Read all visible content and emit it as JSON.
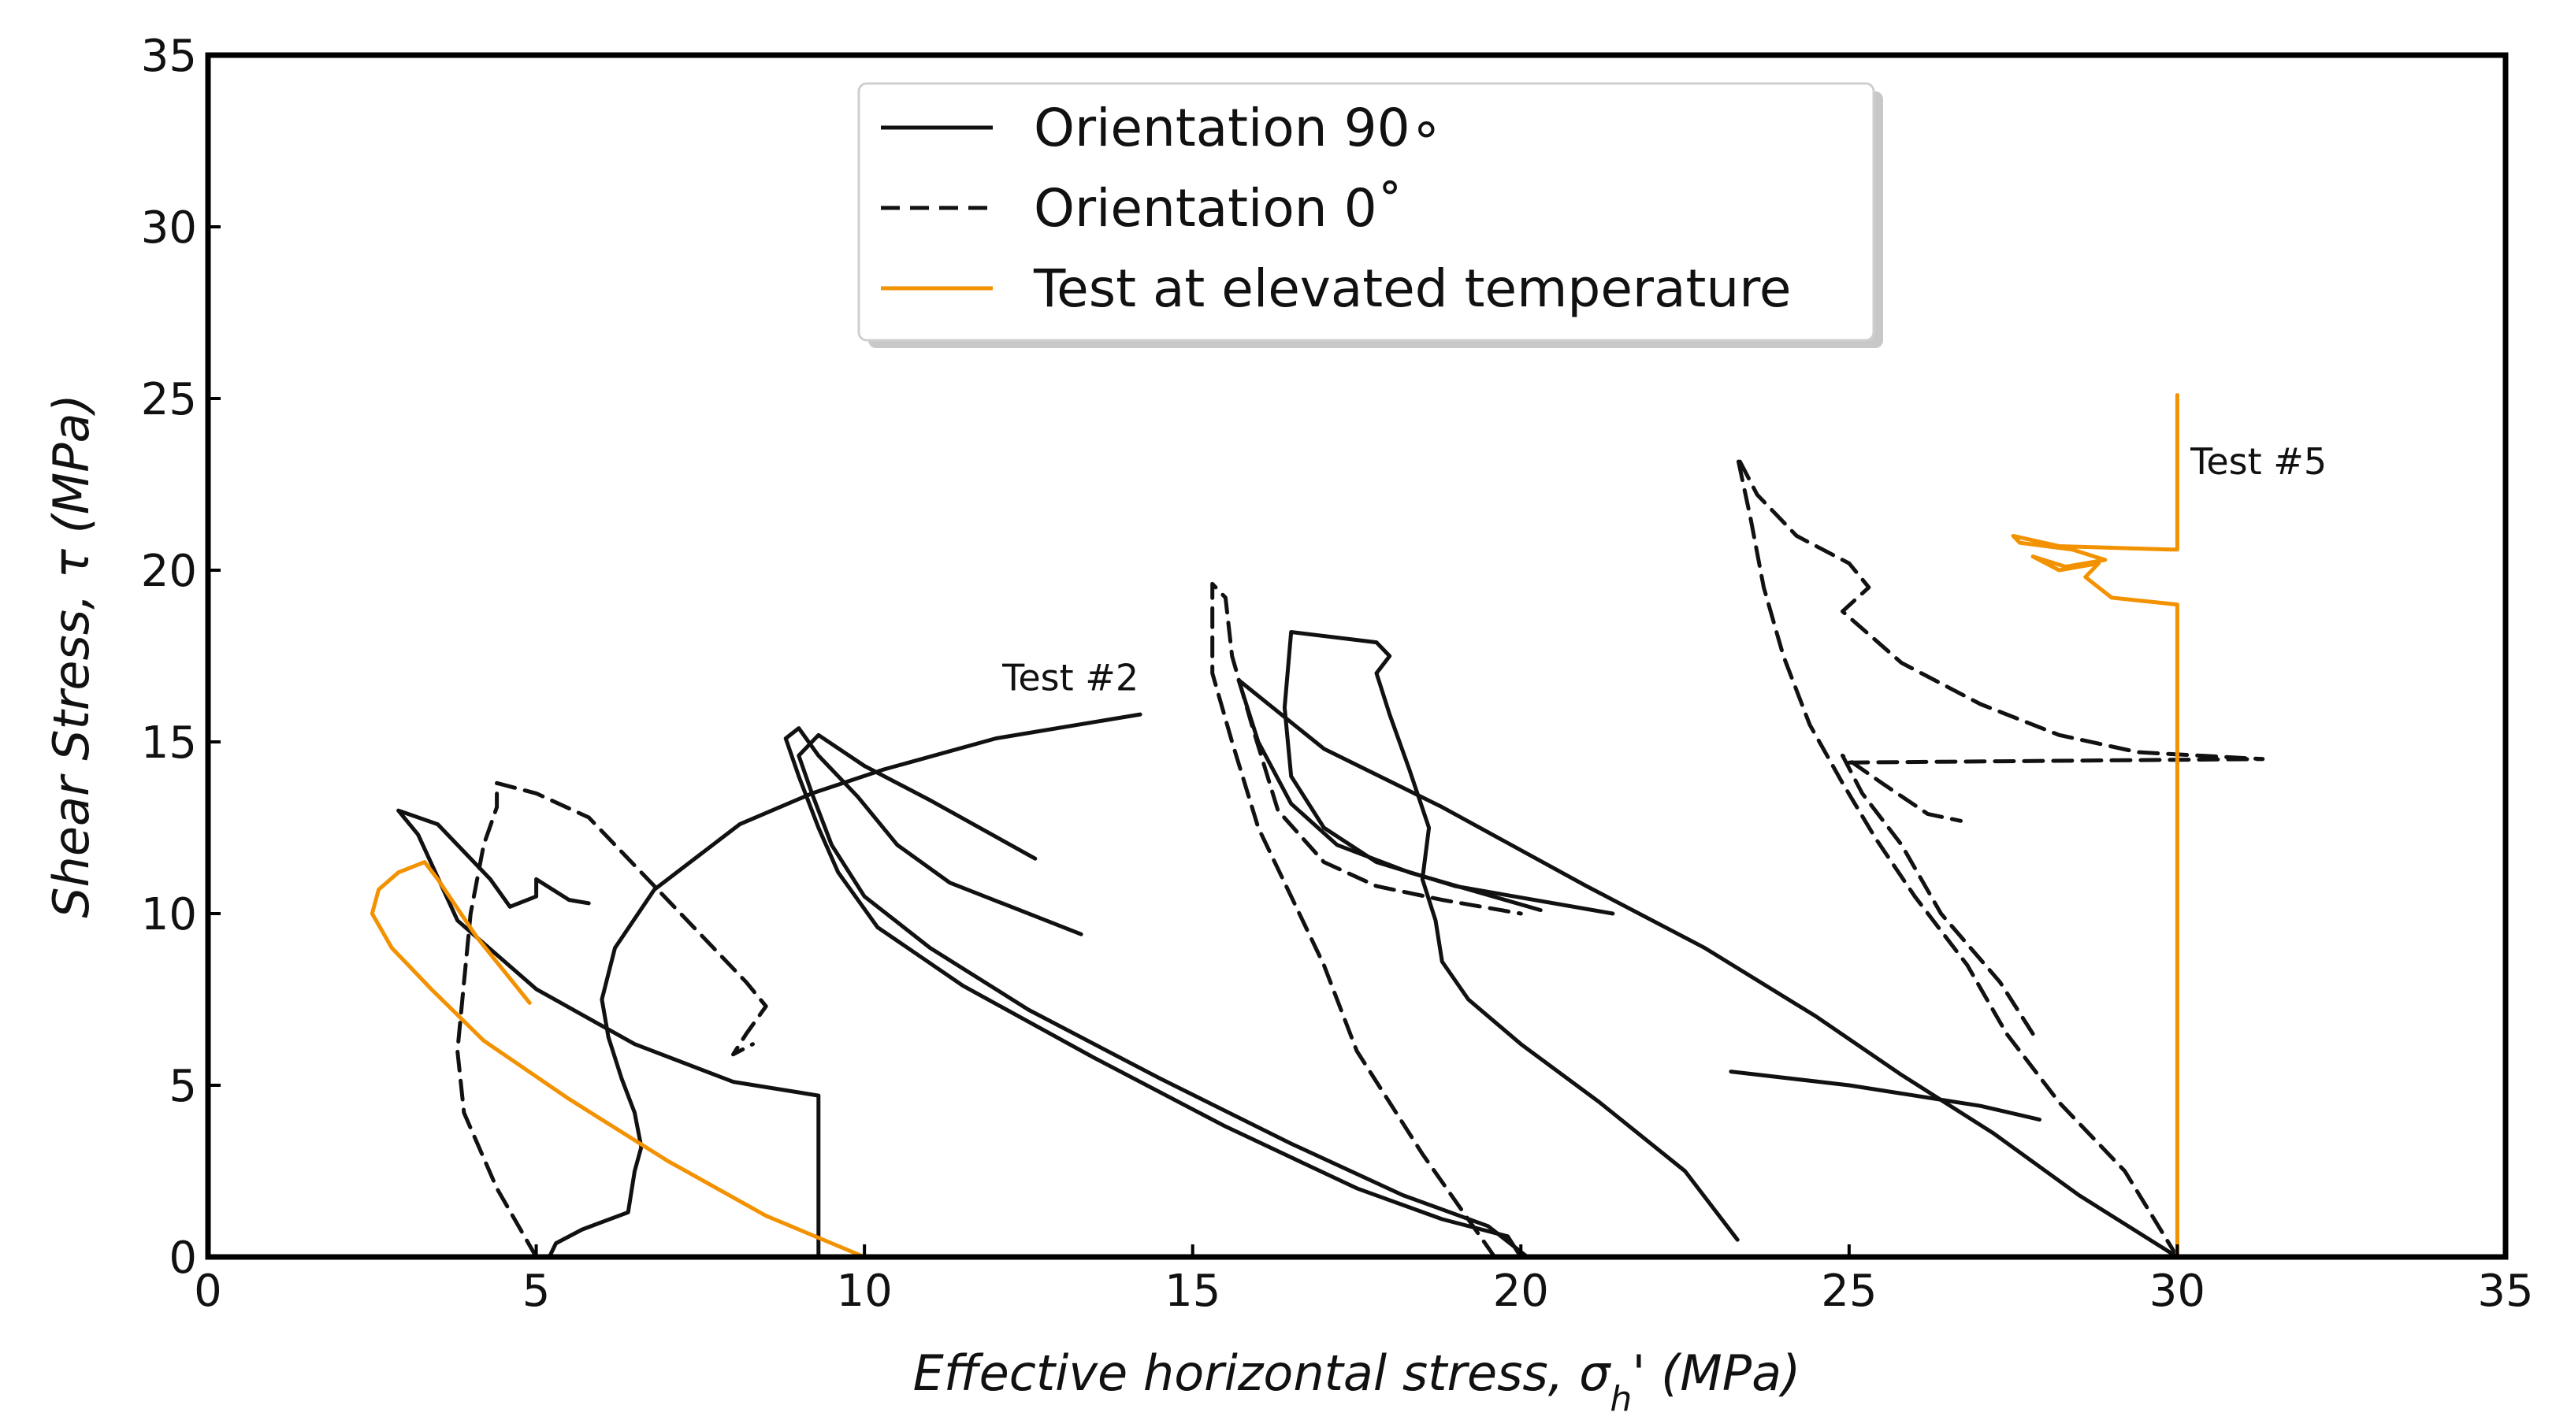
{
  "chart_data": {
    "type": "line",
    "title": "",
    "xlabel": "Effective horizontal stress, σ",
    "xlabel_sub": "h",
    "xlabel_tail": "'  (MPa)",
    "ylabel": "Shear Stress, τ (MPa)",
    "xlim": [
      0,
      35
    ],
    "ylim": [
      0,
      35
    ],
    "x_ticks": [
      0,
      5,
      10,
      15,
      20,
      25,
      30,
      35
    ],
    "y_ticks": [
      0,
      5,
      10,
      15,
      20,
      25,
      30,
      35
    ],
    "legend": [
      {
        "label": "Orientation 90∘",
        "style": "solid",
        "color": "#111111"
      },
      {
        "label": "Orientation 0˚",
        "style": "dashed",
        "color": "#111111"
      },
      {
        "label": "Test at elevated temperature",
        "style": "solid",
        "color": "#f39200"
      }
    ],
    "annotations": [
      {
        "text": "Test #2",
        "x": 12.1,
        "y": 16.5
      },
      {
        "text": "Test #5",
        "x": 30.2,
        "y": 22.8
      }
    ],
    "series": [
      {
        "name": "90-a",
        "style": "solid",
        "color": "#111111",
        "points": [
          [
            9.3,
            0
          ],
          [
            9.3,
            4.7
          ],
          [
            8.0,
            5.1
          ],
          [
            6.5,
            6.2
          ],
          [
            5.0,
            7.8
          ],
          [
            3.8,
            9.8
          ],
          [
            3.2,
            12.3
          ],
          [
            2.9,
            13.0
          ],
          [
            3.5,
            12.6
          ],
          [
            4.3,
            11.0
          ],
          [
            4.6,
            10.2
          ],
          [
            5.0,
            10.5
          ],
          [
            5.0,
            11.0
          ],
          [
            5.5,
            10.4
          ],
          [
            5.8,
            10.3
          ]
        ]
      },
      {
        "name": "90-b",
        "style": "solid",
        "color": "#111111",
        "points": [
          [
            5.2,
            0
          ],
          [
            5.3,
            0.4
          ],
          [
            5.7,
            0.8
          ],
          [
            6.4,
            1.3
          ],
          [
            6.5,
            2.5
          ],
          [
            6.6,
            3.2
          ],
          [
            6.5,
            4.2
          ],
          [
            6.3,
            5.2
          ],
          [
            6.1,
            6.4
          ],
          [
            6.0,
            7.5
          ],
          [
            6.2,
            9.0
          ],
          [
            6.8,
            10.7
          ],
          [
            8.1,
            12.6
          ],
          [
            9.2,
            13.5
          ],
          [
            10.3,
            14.2
          ],
          [
            12.0,
            15.1
          ],
          [
            14.2,
            15.8
          ]
        ]
      },
      {
        "name": "90-c",
        "style": "solid",
        "color": "#111111",
        "points": [
          [
            20.0,
            0
          ],
          [
            19.8,
            0.6
          ],
          [
            18.8,
            1.1
          ],
          [
            17.5,
            2.0
          ],
          [
            15.5,
            3.8
          ],
          [
            13.5,
            5.8
          ],
          [
            11.5,
            7.9
          ],
          [
            10.2,
            9.6
          ],
          [
            9.6,
            11.2
          ],
          [
            9.3,
            12.5
          ],
          [
            9.0,
            14.0
          ],
          [
            8.8,
            15.1
          ],
          [
            9.0,
            15.4
          ],
          [
            9.3,
            14.6
          ],
          [
            9.9,
            13.4
          ],
          [
            10.5,
            12.0
          ],
          [
            11.3,
            10.9
          ],
          [
            13.3,
            9.4
          ]
        ]
      },
      {
        "name": "90-d",
        "style": "solid",
        "color": "#111111",
        "points": [
          [
            20.1,
            0
          ],
          [
            19.5,
            0.9
          ],
          [
            18.2,
            1.8
          ],
          [
            16.5,
            3.3
          ],
          [
            14.5,
            5.2
          ],
          [
            12.5,
            7.2
          ],
          [
            11.0,
            9.0
          ],
          [
            10.0,
            10.5
          ],
          [
            9.5,
            12.0
          ],
          [
            9.2,
            13.5
          ],
          [
            9.0,
            14.6
          ],
          [
            9.3,
            15.2
          ],
          [
            10.0,
            14.3
          ],
          [
            11.0,
            13.3
          ],
          [
            12.6,
            11.6
          ]
        ]
      },
      {
        "name": "90-e",
        "style": "solid",
        "color": "#111111",
        "points": [
          [
            23.3,
            0.5
          ],
          [
            22.5,
            2.5
          ],
          [
            21.2,
            4.5
          ],
          [
            20.0,
            6.2
          ],
          [
            19.2,
            7.5
          ],
          [
            18.8,
            8.6
          ],
          [
            18.7,
            9.8
          ],
          [
            18.5,
            11.0
          ],
          [
            18.6,
            12.5
          ],
          [
            18.3,
            14.2
          ],
          [
            18.0,
            15.8
          ],
          [
            17.8,
            17.0
          ],
          [
            18.0,
            17.5
          ],
          [
            17.8,
            17.9
          ],
          [
            16.5,
            18.2
          ],
          [
            16.4,
            16.0
          ],
          [
            16.5,
            14.0
          ],
          [
            17.0,
            12.5
          ],
          [
            17.8,
            11.5
          ],
          [
            19.0,
            10.8
          ],
          [
            21.4,
            10.0
          ]
        ]
      },
      {
        "name": "90-f",
        "style": "solid",
        "color": "#111111",
        "points": [
          [
            30.0,
            0
          ],
          [
            28.5,
            1.8
          ],
          [
            27.2,
            3.6
          ],
          [
            25.8,
            5.3
          ],
          [
            24.5,
            7.0
          ],
          [
            22.8,
            9.0
          ],
          [
            21.0,
            10.8
          ],
          [
            18.8,
            13.1
          ],
          [
            17.0,
            14.8
          ],
          [
            15.7,
            16.8
          ],
          [
            16.0,
            15.0
          ],
          [
            16.5,
            13.2
          ],
          [
            17.2,
            12.0
          ],
          [
            18.3,
            11.2
          ],
          [
            20.3,
            10.1
          ]
        ]
      },
      {
        "name": "90-g",
        "style": "solid",
        "color": "#111111",
        "points": [
          [
            23.2,
            5.4
          ],
          [
            25.0,
            5.0
          ],
          [
            27.0,
            4.4
          ],
          [
            27.9,
            4.0
          ]
        ]
      },
      {
        "name": "0-a",
        "style": "dashed",
        "color": "#111111",
        "points": [
          [
            5.0,
            0
          ],
          [
            4.4,
            2.0
          ],
          [
            3.9,
            4.2
          ],
          [
            3.8,
            6.0
          ],
          [
            3.9,
            8.0
          ],
          [
            4.0,
            10.0
          ],
          [
            4.2,
            12.0
          ],
          [
            4.4,
            13.1
          ],
          [
            4.4,
            13.8
          ],
          [
            5.0,
            13.5
          ],
          [
            5.8,
            12.8
          ],
          [
            6.6,
            11.2
          ],
          [
            7.5,
            9.4
          ],
          [
            8.2,
            8.0
          ],
          [
            8.5,
            7.3
          ],
          [
            8.2,
            6.5
          ],
          [
            8.0,
            5.9
          ],
          [
            8.3,
            6.2
          ]
        ]
      },
      {
        "name": "0-b",
        "style": "dashed",
        "color": "#111111",
        "points": [
          [
            19.6,
            0
          ],
          [
            18.5,
            3.0
          ],
          [
            17.5,
            6.0
          ],
          [
            17.0,
            8.5
          ],
          [
            16.5,
            10.5
          ],
          [
            16.0,
            12.5
          ],
          [
            15.6,
            15.0
          ],
          [
            15.3,
            17.0
          ],
          [
            15.3,
            19.6
          ],
          [
            15.5,
            19.2
          ],
          [
            15.6,
            17.5
          ],
          [
            15.9,
            15.5
          ],
          [
            16.3,
            13.0
          ],
          [
            17.0,
            11.5
          ],
          [
            17.8,
            10.8
          ],
          [
            18.8,
            10.4
          ],
          [
            20.0,
            10.0
          ]
        ]
      },
      {
        "name": "0-c",
        "style": "dashed",
        "color": "#111111",
        "points": [
          [
            30.0,
            0
          ],
          [
            29.2,
            2.5
          ],
          [
            28.2,
            4.5
          ],
          [
            27.4,
            6.5
          ],
          [
            26.8,
            8.5
          ],
          [
            26.0,
            10.5
          ],
          [
            25.4,
            12.2
          ],
          [
            24.9,
            13.8
          ],
          [
            24.4,
            15.5
          ],
          [
            24.0,
            17.5
          ],
          [
            23.7,
            19.5
          ],
          [
            23.5,
            21.5
          ],
          [
            23.3,
            23.3
          ],
          [
            23.6,
            22.2
          ],
          [
            24.2,
            21.0
          ],
          [
            25.0,
            20.2
          ],
          [
            25.3,
            19.5
          ],
          [
            24.9,
            18.8
          ],
          [
            25.8,
            17.3
          ],
          [
            27.0,
            16.1
          ],
          [
            28.2,
            15.2
          ],
          [
            29.4,
            14.7
          ],
          [
            31.3,
            14.5
          ]
        ]
      },
      {
        "name": "0-d",
        "style": "dashed",
        "color": "#111111",
        "points": [
          [
            27.8,
            6.5
          ],
          [
            27.3,
            8.0
          ],
          [
            26.4,
            10.0
          ],
          [
            25.8,
            12.0
          ],
          [
            25.2,
            13.5
          ],
          [
            24.9,
            14.6
          ],
          [
            25.5,
            13.8
          ],
          [
            26.2,
            12.9
          ],
          [
            26.7,
            12.7
          ]
        ]
      },
      {
        "name": "0-e",
        "style": "dashed",
        "color": "#111111",
        "points": [
          [
            25.0,
            14.4
          ],
          [
            31.3,
            14.5
          ]
        ]
      },
      {
        "name": "temp-a",
        "style": "solid",
        "color": "#f39200",
        "points": [
          [
            10.0,
            0
          ],
          [
            8.5,
            1.2
          ],
          [
            7.0,
            2.8
          ],
          [
            5.5,
            4.6
          ],
          [
            4.2,
            6.3
          ],
          [
            3.4,
            7.8
          ],
          [
            2.8,
            9.0
          ],
          [
            2.5,
            10.0
          ],
          [
            2.6,
            10.7
          ],
          [
            2.9,
            11.2
          ],
          [
            3.3,
            11.5
          ],
          [
            3.5,
            11.0
          ],
          [
            4.1,
            9.3
          ],
          [
            4.9,
            7.4
          ]
        ]
      },
      {
        "name": "temp-b",
        "style": "solid",
        "color": "#f39200",
        "points": [
          [
            30.0,
            0
          ],
          [
            30.0,
            19.0
          ],
          [
            29.0,
            19.2
          ],
          [
            28.6,
            19.8
          ],
          [
            28.8,
            20.2
          ],
          [
            28.2,
            20.0
          ],
          [
            27.8,
            20.4
          ],
          [
            28.3,
            20.1
          ],
          [
            28.9,
            20.3
          ],
          [
            28.4,
            20.6
          ],
          [
            27.6,
            20.8
          ],
          [
            27.5,
            21.0
          ],
          [
            28.2,
            20.7
          ],
          [
            29.9,
            20.6
          ],
          [
            30.0,
            20.6
          ],
          [
            30.0,
            25.1
          ]
        ]
      }
    ]
  }
}
